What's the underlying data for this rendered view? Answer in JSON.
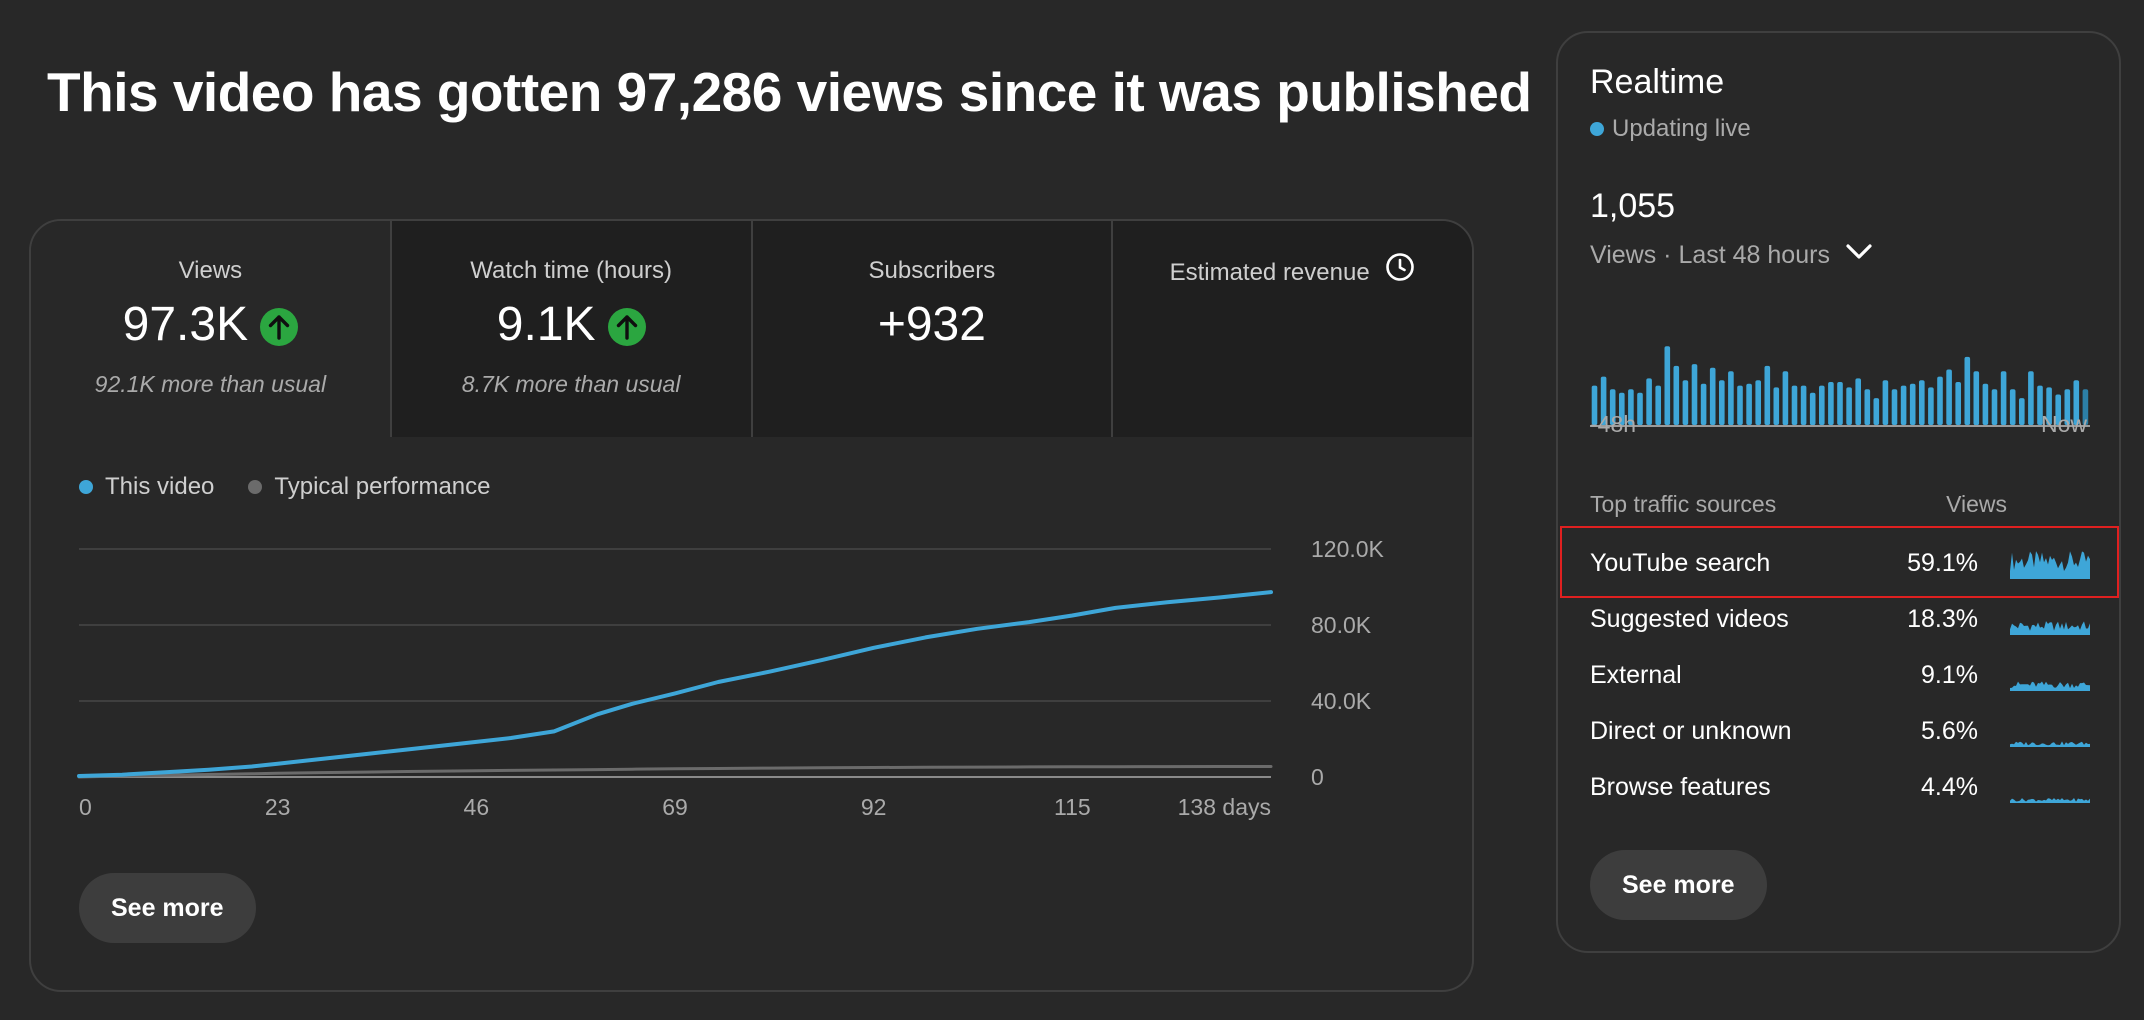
{
  "headline": "This video has gotten 97,286 views since it was published",
  "metrics": [
    {
      "label": "Views",
      "value": "97.3K",
      "trend": "up",
      "sub": "92.1K more than usual"
    },
    {
      "label": "Watch time (hours)",
      "value": "9.1K",
      "trend": "up",
      "sub": "8.7K more than usual"
    },
    {
      "label": "Subscribers",
      "value": "+932",
      "trend": "",
      "sub": ""
    },
    {
      "label": "Estimated revenue",
      "value": "",
      "trend": "",
      "sub": ""
    }
  ],
  "colors": {
    "this_video": "#3ea6d8",
    "typical": "#6b6b6b",
    "up_badge": "#2ba640",
    "highlight": "#e02020"
  },
  "chart_data": {
    "type": "line",
    "x": [
      0,
      5,
      10,
      15,
      20,
      23,
      28,
      33,
      38,
      46,
      50,
      55,
      60,
      64,
      69,
      74,
      80,
      86,
      92,
      98,
      104,
      110,
      115,
      120,
      126,
      132,
      138
    ],
    "series": [
      {
        "name": "This video",
        "values": [
          500,
          1200,
          2500,
          3800,
          5500,
          7000,
          9500,
          12000,
          14500,
          18500,
          20500,
          24000,
          33000,
          38500,
          44000,
          50000,
          55500,
          61500,
          68000,
          73500,
          78000,
          81500,
          85000,
          89000,
          92000,
          94500,
          97300
        ]
      },
      {
        "name": "Typical performance",
        "values": [
          0,
          500,
          900,
          1300,
          1700,
          2000,
          2300,
          2600,
          2900,
          3300,
          3500,
          3700,
          3900,
          4100,
          4300,
          4500,
          4700,
          4900,
          5000,
          5100,
          5200,
          5300,
          5350,
          5400,
          5450,
          5500,
          5550
        ]
      }
    ],
    "x_ticks": [
      "0",
      "23",
      "46",
      "69",
      "92",
      "115",
      "138 days"
    ],
    "x_tick_values": [
      0,
      23,
      46,
      69,
      92,
      115,
      138
    ],
    "y_ticks": [
      "120.0K",
      "80.0K",
      "40.0K",
      "0"
    ],
    "y_tick_values": [
      120000,
      80000,
      40000,
      0
    ],
    "xlim": [
      0,
      138
    ],
    "ylim": [
      0,
      120000
    ],
    "legend_position": "top-left",
    "grid": true
  },
  "see_more_label": "See more",
  "realtime": {
    "title": "Realtime",
    "live_label": "Updating live",
    "count": "1,055",
    "range_label": "Views · Last 48 hours",
    "axis_start": "-48h",
    "axis_end": "Now",
    "bars": [
      22,
      27,
      20,
      18,
      20,
      18,
      26,
      22,
      44,
      33,
      25,
      34,
      23,
      32,
      25,
      30,
      22,
      23,
      25,
      33,
      21,
      30,
      22,
      22,
      18,
      22,
      24,
      24,
      21,
      26,
      20,
      15,
      25,
      20,
      22,
      23,
      25,
      21,
      27,
      31,
      24,
      38,
      30,
      23,
      20,
      30,
      20,
      15,
      30,
      22,
      21,
      17,
      20,
      25,
      20
    ],
    "traffic_header": "Top traffic sources",
    "views_header": "Views",
    "sources": [
      {
        "name": "YouTube search",
        "pct": "59.1%",
        "level": 1.0
      },
      {
        "name": "Suggested videos",
        "pct": "18.3%",
        "level": 0.5
      },
      {
        "name": "External",
        "pct": "9.1%",
        "level": 0.35
      },
      {
        "name": "Direct or unknown",
        "pct": "5.6%",
        "level": 0.2
      },
      {
        "name": "Browse features",
        "pct": "4.4%",
        "level": 0.18
      }
    ]
  }
}
